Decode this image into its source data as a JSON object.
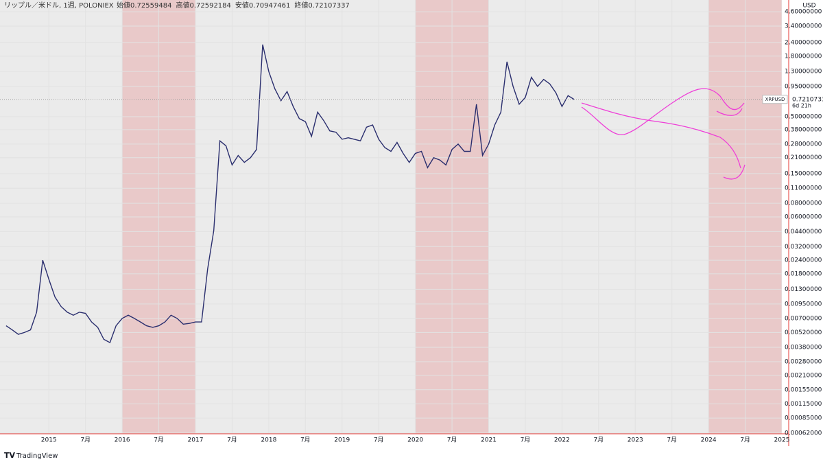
{
  "chart_data": {
    "type": "line",
    "title": "リップル／米ドル, 1週, POLONIEX",
    "ohlc": [
      {
        "label": "始値",
        "value": 0.72559484
      },
      {
        "label": "高値",
        "value": 0.72592184
      },
      {
        "label": "安値",
        "value": 0.70947461
      },
      {
        "label": "終値",
        "value": 0.72107337
      }
    ],
    "y_unit": "USD",
    "symbol_tag": "XRPUSD",
    "last_price": 0.72107337,
    "countdown": "6d 21h",
    "footer": "TradingView",
    "color": "#2a2e6e",
    "log_scale": true,
    "x": [
      "2014-06",
      "2014-07",
      "2014-08",
      "2014-09",
      "2014-10",
      "2014-11",
      "2014-12",
      "2015-01",
      "2015-02",
      "2015-03",
      "2015-04",
      "2015-05",
      "2015-06",
      "2015-07",
      "2015-08",
      "2015-09",
      "2015-10",
      "2015-11",
      "2015-12",
      "2016-01",
      "2016-02",
      "2016-03",
      "2016-04",
      "2016-05",
      "2016-06",
      "2016-07",
      "2016-08",
      "2016-09",
      "2016-10",
      "2016-11",
      "2016-12",
      "2017-01",
      "2017-02",
      "2017-03",
      "2017-04",
      "2017-05",
      "2017-06",
      "2017-07",
      "2017-08",
      "2017-09",
      "2017-10",
      "2017-11",
      "2017-12",
      "2018-01",
      "2018-02",
      "2018-03",
      "2018-04",
      "2018-05",
      "2018-06",
      "2018-07",
      "2018-08",
      "2018-09",
      "2018-10",
      "2018-11",
      "2018-12",
      "2019-01",
      "2019-02",
      "2019-03",
      "2019-04",
      "2019-05",
      "2019-06",
      "2019-07",
      "2019-08",
      "2019-09",
      "2019-10",
      "2019-11",
      "2019-12",
      "2020-01",
      "2020-02",
      "2020-03",
      "2020-04",
      "2020-05",
      "2020-06",
      "2020-07",
      "2020-08",
      "2020-09",
      "2020-10",
      "2020-11",
      "2020-12",
      "2021-01",
      "2021-02",
      "2021-03",
      "2021-04",
      "2021-05",
      "2021-06",
      "2021-07",
      "2021-08",
      "2021-09",
      "2021-10",
      "2021-11",
      "2021-12",
      "2022-01",
      "2022-02",
      "2022-03"
    ],
    "values": [
      0.006,
      0.0055,
      0.005,
      0.0052,
      0.0055,
      0.008,
      0.024,
      0.016,
      0.011,
      0.009,
      0.008,
      0.0075,
      0.008,
      0.0078,
      0.0065,
      0.0058,
      0.0045,
      0.0042,
      0.006,
      0.007,
      0.0075,
      0.007,
      0.0065,
      0.006,
      0.0058,
      0.006,
      0.0065,
      0.0075,
      0.007,
      0.0062,
      0.0063,
      0.0065,
      0.0065,
      0.02,
      0.045,
      0.3,
      0.27,
      0.18,
      0.22,
      0.19,
      0.21,
      0.25,
      2.3,
      1.3,
      0.9,
      0.7,
      0.85,
      0.62,
      0.48,
      0.45,
      0.33,
      0.55,
      0.46,
      0.37,
      0.36,
      0.31,
      0.32,
      0.31,
      0.3,
      0.4,
      0.42,
      0.31,
      0.26,
      0.24,
      0.29,
      0.23,
      0.19,
      0.23,
      0.24,
      0.17,
      0.21,
      0.2,
      0.18,
      0.25,
      0.28,
      0.24,
      0.24,
      0.65,
      0.22,
      0.28,
      0.42,
      0.55,
      1.6,
      0.95,
      0.65,
      0.75,
      1.15,
      0.95,
      1.1,
      1.0,
      0.83,
      0.62,
      0.78,
      0.72
    ],
    "shaded_ranges": [
      {
        "start": "2016-01",
        "end": "2017-01"
      },
      {
        "start": "2020-01",
        "end": "2021-01"
      },
      {
        "start": "2024-01",
        "end": "2025-01"
      }
    ],
    "xlim": [
      "2014-05",
      "2025-01"
    ],
    "xticks": [
      {
        "value": "2015-01",
        "label": "2015"
      },
      {
        "value": "2015-07",
        "label": "7月"
      },
      {
        "value": "2016-01",
        "label": "2016"
      },
      {
        "value": "2016-07",
        "label": "7月"
      },
      {
        "value": "2017-01",
        "label": "2017"
      },
      {
        "value": "2017-07",
        "label": "7月"
      },
      {
        "value": "2018-01",
        "label": "2018"
      },
      {
        "value": "2018-07",
        "label": "7月"
      },
      {
        "value": "2019-01",
        "label": "2019"
      },
      {
        "value": "2019-07",
        "label": "7月"
      },
      {
        "value": "2020-01",
        "label": "2020"
      },
      {
        "value": "2020-07",
        "label": "7月"
      },
      {
        "value": "2021-01",
        "label": "2021"
      },
      {
        "value": "2021-07",
        "label": "7月"
      },
      {
        "value": "2022-01",
        "label": "2022"
      },
      {
        "value": "2022-07",
        "label": "7月"
      },
      {
        "value": "2023-01",
        "label": "2023"
      },
      {
        "value": "2023-07",
        "label": "7月"
      },
      {
        "value": "2024-01",
        "label": "2024"
      },
      {
        "value": "2024-07",
        "label": "7月"
      },
      {
        "value": "2025-01",
        "label": "2025"
      }
    ],
    "ylim": [
      0.00061,
      5.9
    ],
    "yticks": [
      {
        "value": 4.6,
        "label": "4.60000000"
      },
      {
        "value": 3.4,
        "label": "3.40000000"
      },
      {
        "value": 2.4,
        "label": "2.40000000"
      },
      {
        "value": 1.8,
        "label": "1.80000000"
      },
      {
        "value": 1.3,
        "label": "1.30000000"
      },
      {
        "value": 0.95,
        "label": "0.95000000"
      },
      {
        "value": 0.5,
        "label": "0.50000000"
      },
      {
        "value": 0.38,
        "label": "0.38000000"
      },
      {
        "value": 0.28,
        "label": "0.28000000"
      },
      {
        "value": 0.21,
        "label": "0.21000000"
      },
      {
        "value": 0.15,
        "label": "0.15000000"
      },
      {
        "value": 0.11,
        "label": "0.11000000"
      },
      {
        "value": 0.08,
        "label": "0.08000000"
      },
      {
        "value": 0.06,
        "label": "0.06000000"
      },
      {
        "value": 0.044,
        "label": "0.04400000"
      },
      {
        "value": 0.032,
        "label": "0.03200000"
      },
      {
        "value": 0.024,
        "label": "0.02400000"
      },
      {
        "value": 0.018,
        "label": "0.01800000"
      },
      {
        "value": 0.013,
        "label": "0.01300000"
      },
      {
        "value": 0.0095,
        "label": "0.00950000"
      },
      {
        "value": 0.007,
        "label": "0.00700000"
      },
      {
        "value": 0.0052,
        "label": "0.00520000"
      },
      {
        "value": 0.0038,
        "label": "0.00380000"
      },
      {
        "value": 0.0028,
        "label": "0.00280000"
      },
      {
        "value": 0.0021,
        "label": "0.00210000"
      },
      {
        "value": 0.00155,
        "label": "0.00155000"
      },
      {
        "value": 0.00115,
        "label": "0.00115000"
      },
      {
        "value": 0.00085,
        "label": "0.00085000"
      },
      {
        "value": 0.00062,
        "label": "0.00062000"
      }
    ]
  }
}
